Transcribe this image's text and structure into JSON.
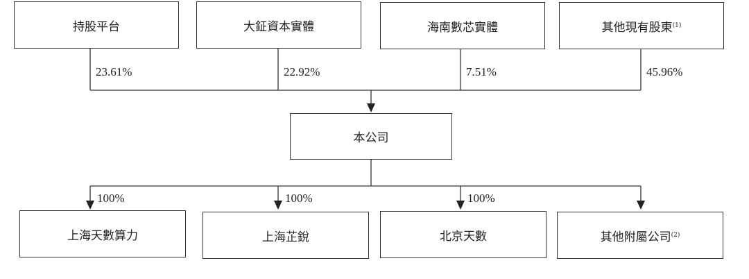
{
  "shareholders": [
    {
      "name": "持股平台",
      "note": "",
      "pct": "23.61%"
    },
    {
      "name": "大鉦資本實體",
      "note": "",
      "pct": "22.92%"
    },
    {
      "name": "海南數芯實體",
      "note": "",
      "pct": "7.51%"
    },
    {
      "name": "其他現有股東",
      "note": "(1)",
      "pct": "45.96%"
    }
  ],
  "company": {
    "name": "本公司"
  },
  "subsidiaries": [
    {
      "name": "上海天數算力",
      "note": "",
      "pct": "100%"
    },
    {
      "name": "上海芷銳",
      "note": "",
      "pct": "100%"
    },
    {
      "name": "北京天數",
      "note": "",
      "pct": "100%"
    },
    {
      "name": "其他附屬公司",
      "note": "(2)",
      "pct": ""
    }
  ]
}
